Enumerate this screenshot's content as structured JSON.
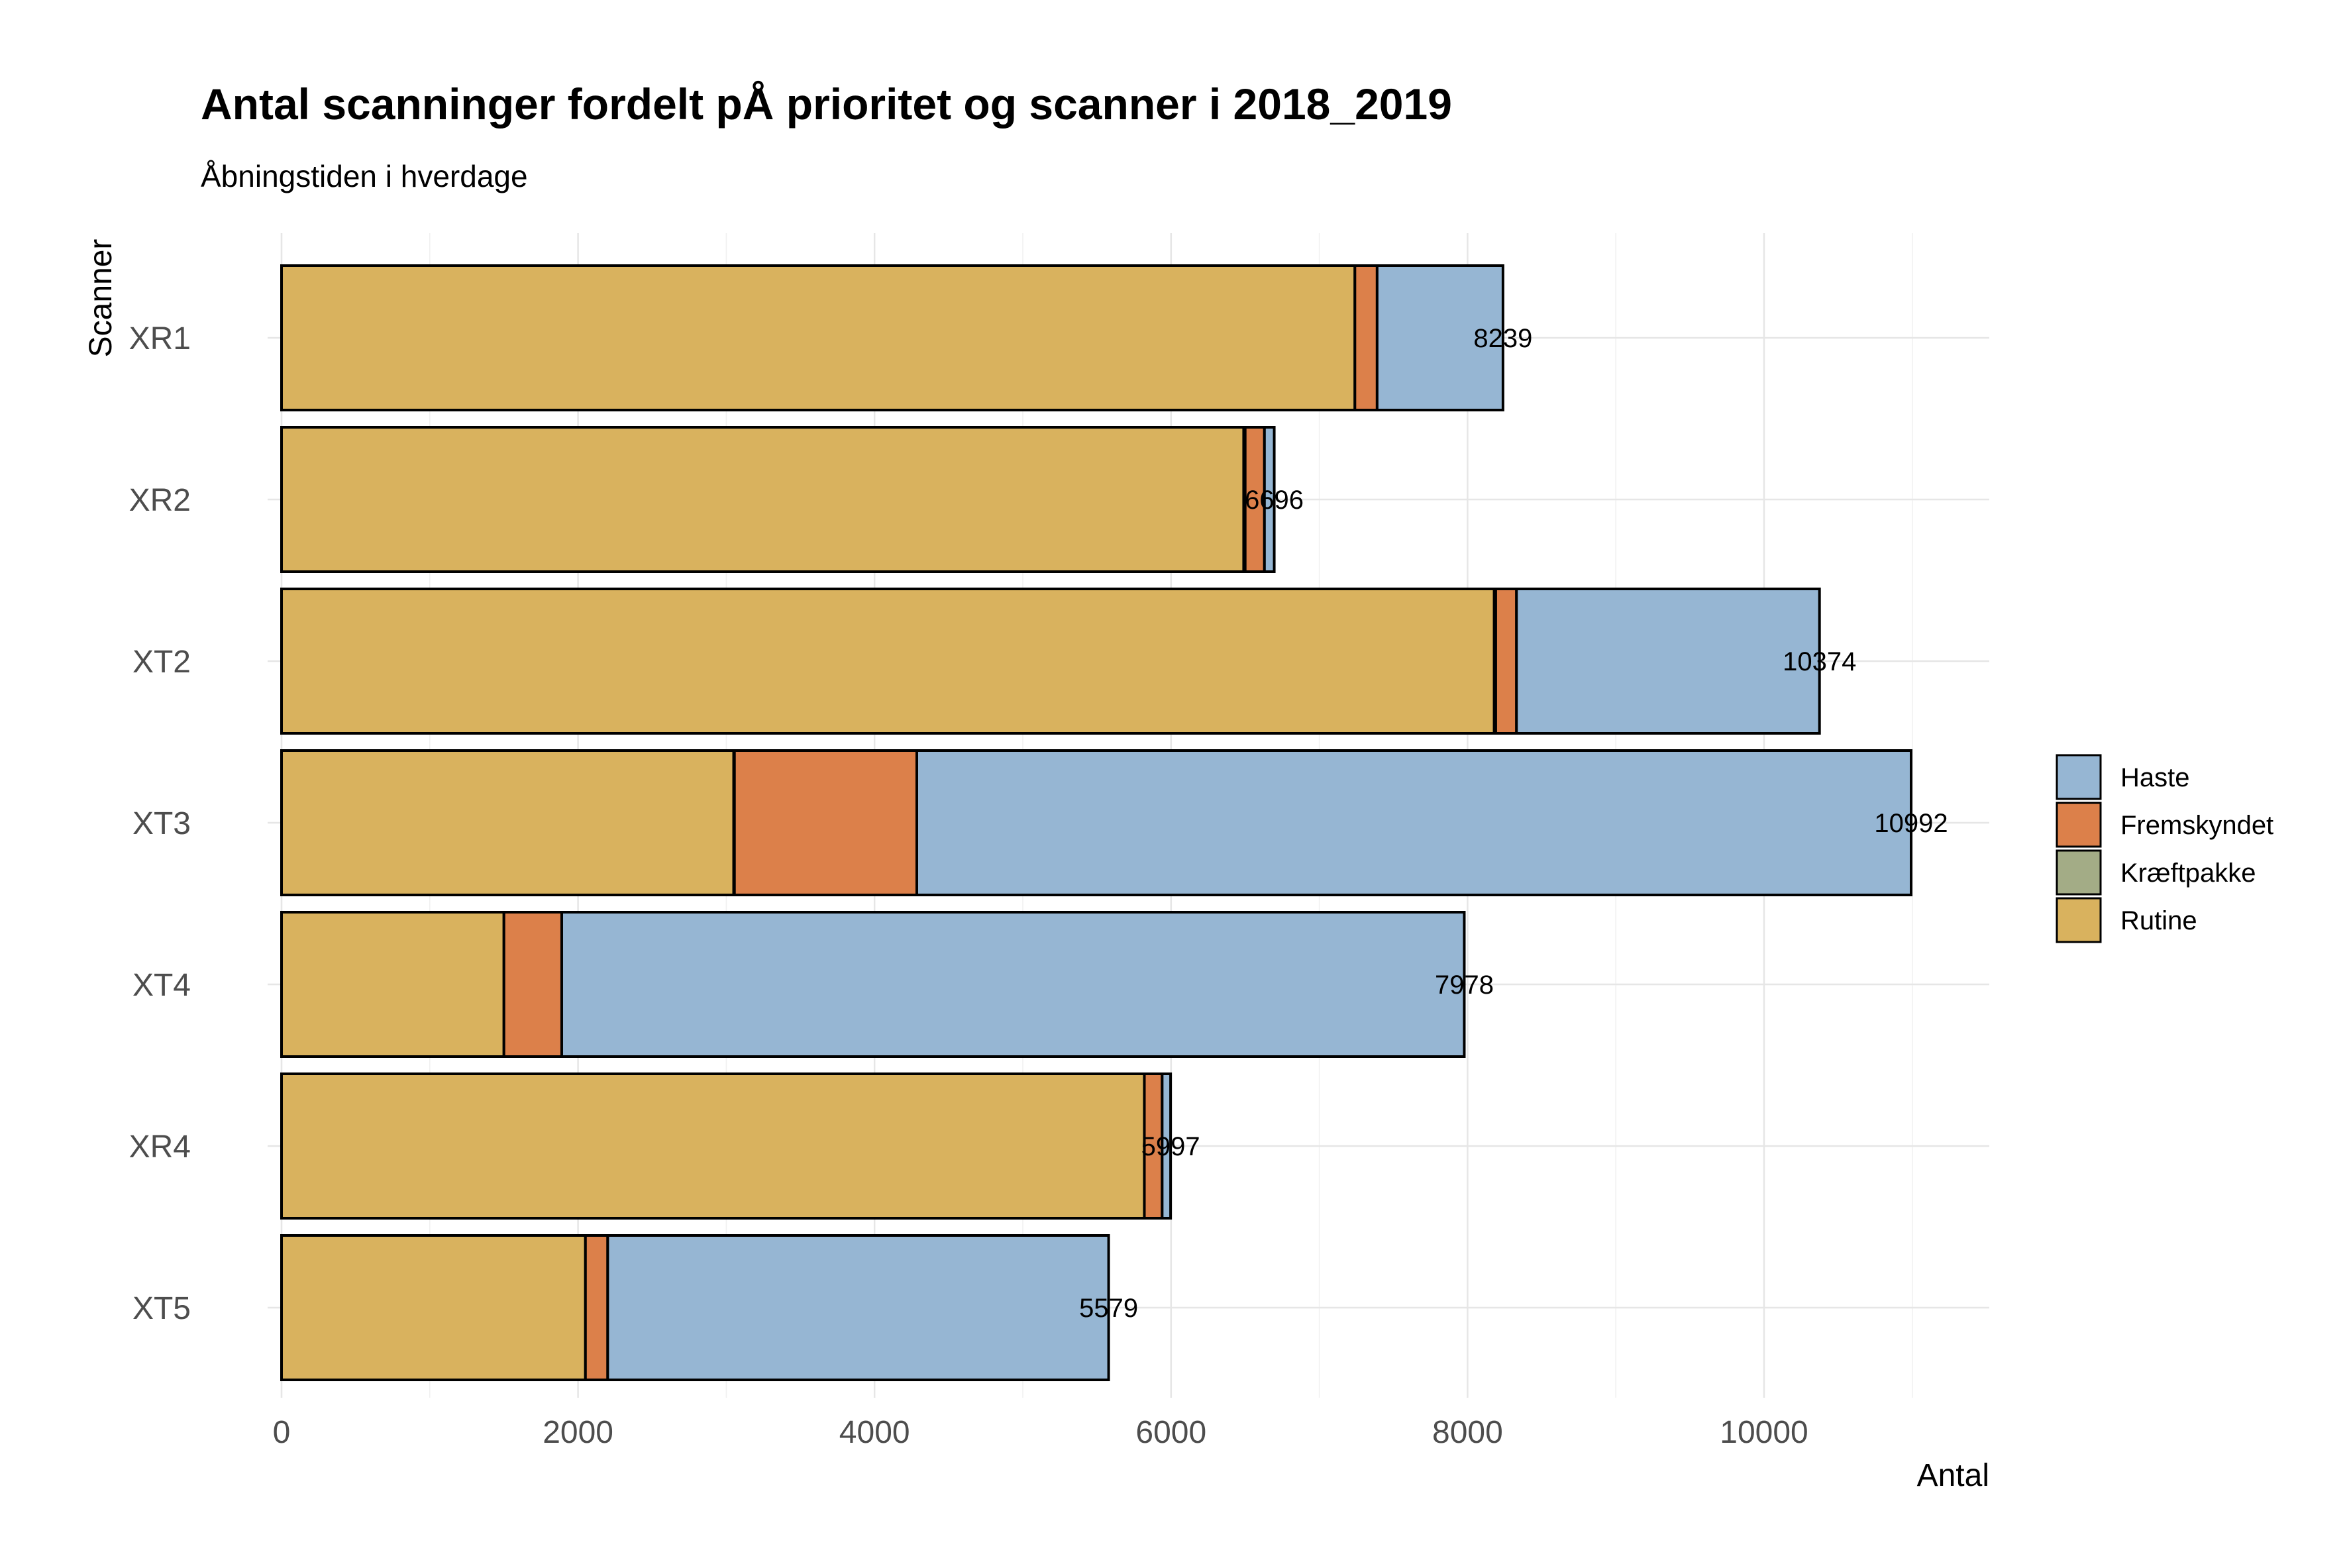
{
  "chart_data": {
    "type": "bar",
    "orientation": "horizontal",
    "stacked": true,
    "title": "Antal scanninger fordelt pÅ prioritet og scanner i 2018_2019",
    "subtitle": "Åbningstiden i hverdage",
    "xlabel": "Antal",
    "ylabel": "Scanner",
    "xlim": [
      0,
      11500
    ],
    "x_ticks": [
      0,
      2000,
      4000,
      6000,
      8000,
      10000
    ],
    "grid": true,
    "legend_position": "right",
    "categories": [
      "XR1",
      "XR2",
      "XT2",
      "XT3",
      "XT4",
      "XR4",
      "XT5"
    ],
    "totals": [
      8239,
      6696,
      10374,
      10992,
      7978,
      5997,
      5579
    ],
    "series": [
      {
        "name": "Rutine",
        "color": "#D9B25E",
        "values": [
          7240,
          6490,
          8180,
          3050,
          1500,
          5820,
          2050
        ]
      },
      {
        "name": "Kræftpakke",
        "color": "#A3AC86",
        "values": [
          0,
          10,
          10,
          5,
          0,
          0,
          0
        ]
      },
      {
        "name": "Fremskyndet",
        "color": "#DC804A",
        "values": [
          150,
          130,
          140,
          1230,
          390,
          120,
          150
        ]
      },
      {
        "name": "Haste",
        "color": "#96B6D3",
        "values": [
          849,
          66,
          2044,
          6707,
          6088,
          57,
          3379
        ]
      }
    ],
    "legend_order": [
      "Haste",
      "Fremskyndet",
      "Kræftpakke",
      "Rutine"
    ]
  }
}
